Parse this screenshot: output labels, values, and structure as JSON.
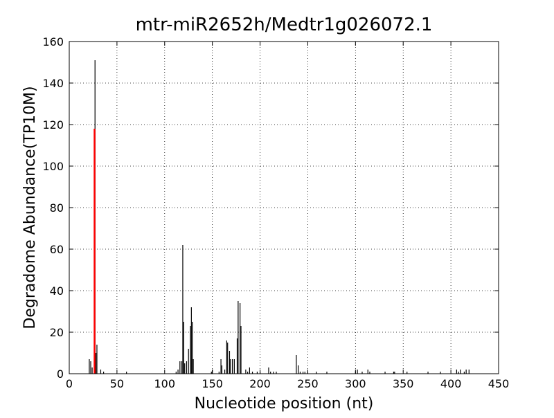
{
  "chart_data": {
    "type": "stem",
    "title": "mtr-miR2652h/Medtr1g026072.1",
    "xlabel": "Nucleotide position (nt)",
    "ylabel": "Degradome Abundance(TP10M)",
    "xlim": [
      0,
      450
    ],
    "ylim": [
      0,
      160
    ],
    "xticks": [
      0,
      50,
      100,
      150,
      200,
      250,
      300,
      350,
      400,
      450
    ],
    "yticks": [
      0,
      20,
      40,
      60,
      80,
      100,
      120,
      140,
      160
    ],
    "grid": true,
    "series": [
      {
        "color": "#000000",
        "x": [
          21,
          22.5,
          24,
          27,
          28,
          29,
          33,
          36,
          60,
          112,
          114,
          116,
          118,
          119,
          120,
          121,
          123,
          125,
          127,
          128,
          129,
          130,
          149,
          150,
          157,
          159,
          160,
          163,
          165,
          166,
          168,
          169,
          171,
          173,
          176,
          177,
          179,
          180,
          185,
          187,
          189,
          192,
          197,
          200,
          209,
          211,
          214,
          217,
          238,
          240,
          242,
          245,
          247,
          250,
          259,
          270,
          300,
          302,
          307,
          313,
          315,
          331,
          340,
          341,
          354,
          376,
          389,
          406,
          408,
          410,
          414,
          416,
          419
        ],
        "values": [
          7,
          6,
          3,
          151,
          10,
          14,
          2,
          1,
          1,
          1,
          2,
          6,
          6,
          62,
          25,
          5,
          6,
          12,
          23,
          32,
          25,
          7,
          1,
          2,
          1,
          7,
          4,
          2,
          16,
          15,
          11,
          7,
          7,
          7,
          17,
          35,
          34,
          23,
          2,
          1,
          3,
          1,
          1,
          1,
          3,
          1,
          1,
          1,
          9,
          4,
          1,
          1,
          1,
          1,
          1,
          1,
          1,
          2,
          1,
          2,
          1,
          1,
          1,
          1,
          1,
          1,
          1,
          2,
          1,
          2,
          1,
          2,
          2
        ]
      },
      {
        "color": "#ff0000",
        "x": [
          26.5
        ],
        "values": [
          118
        ]
      }
    ]
  }
}
